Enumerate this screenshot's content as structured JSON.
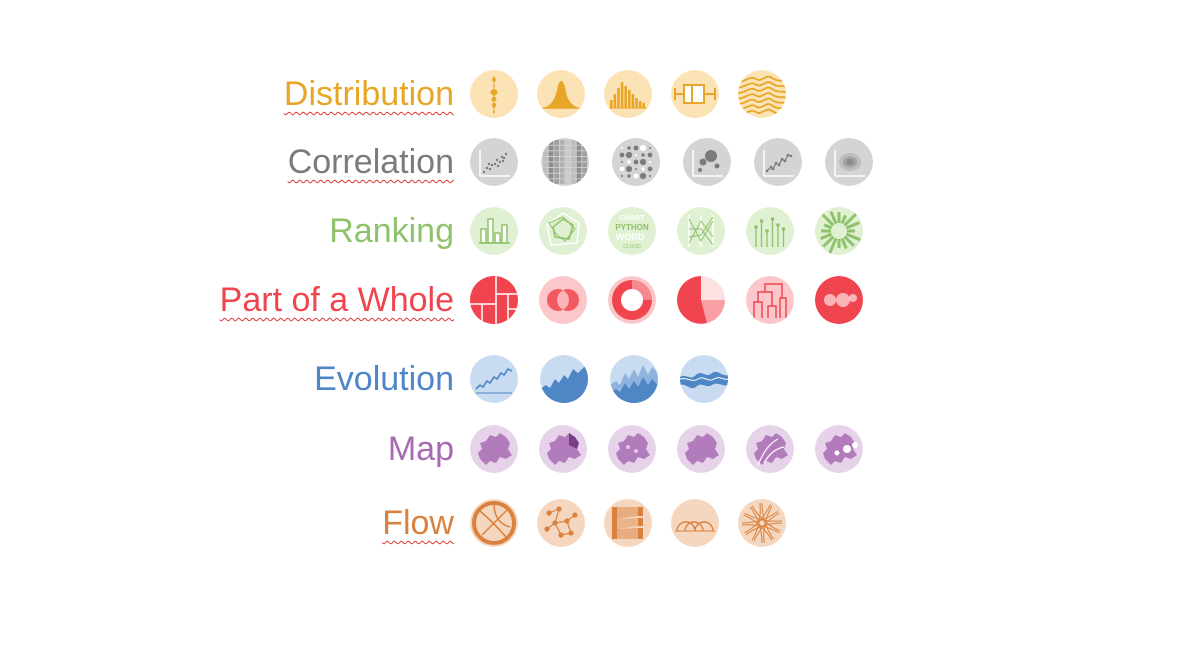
{
  "categories": [
    {
      "id": "distribution",
      "label": "Distribution",
      "color": "#e8a628",
      "bg": "#fbe3b5",
      "misspelled": true,
      "icons": [
        "violin-plot-icon",
        "density-plot-icon",
        "histogram-icon",
        "boxplot-icon",
        "ridgeline-icon"
      ]
    },
    {
      "id": "correlation",
      "label": "Correlation",
      "color": "#7b7b7b",
      "bg": "#d4d4d4",
      "misspelled": true,
      "icons": [
        "scatter-plot-icon",
        "heatmap-icon",
        "correlogram-icon",
        "bubble-chart-icon",
        "connected-scatter-icon",
        "density-2d-icon"
      ]
    },
    {
      "id": "ranking",
      "label": "Ranking",
      "color": "#8fc26a",
      "bg": "#dff0d3",
      "misspelled": false,
      "icons": [
        "barplot-icon",
        "spider-chart-icon",
        "wordcloud-icon",
        "parallel-plot-icon",
        "lollipop-icon",
        "circular-barplot-icon"
      ]
    },
    {
      "id": "part-of-whole",
      "label": "Part of a Whole",
      "color": "#f0454e",
      "bg": "#fcc7ca",
      "misspelled": true,
      "icons": [
        "treemap-icon",
        "venn-diagram-icon",
        "donut-chart-icon",
        "pie-chart-icon",
        "dendrogram-icon",
        "circle-packing-icon"
      ],
      "wordcloud_words": []
    },
    {
      "id": "evolution",
      "label": "Evolution",
      "color": "#4f86c6",
      "bg": "#c9dbf0",
      "misspelled": false,
      "icons": [
        "line-chart-icon",
        "area-chart-icon",
        "stacked-area-icon",
        "streamgraph-icon"
      ]
    },
    {
      "id": "map",
      "label": "Map",
      "color": "#a86bb3",
      "bg": "#e6d3ea",
      "misspelled": false,
      "icons": [
        "map-icon",
        "choropleth-icon",
        "hexbin-map-icon",
        "cartogram-icon",
        "connection-map-icon",
        "bubble-map-icon"
      ]
    },
    {
      "id": "flow",
      "label": "Flow",
      "color": "#d9823f",
      "bg": "#f5d6bf",
      "misspelled": true,
      "icons": [
        "chord-diagram-icon",
        "network-icon",
        "sankey-icon",
        "arc-diagram-icon",
        "edge-bundling-icon"
      ]
    }
  ],
  "wordcloud_words": [
    "WORD",
    "CHART",
    "PYTHON",
    "CLOUD"
  ]
}
